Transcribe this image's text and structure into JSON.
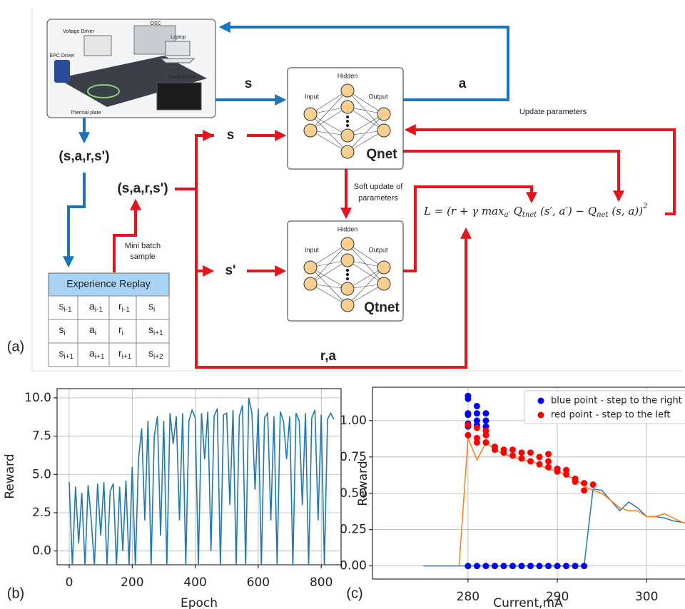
{
  "diagram": {
    "panel_labels": [
      "(a)",
      "(b)",
      "(c)"
    ],
    "photo_labels": [
      "OSC",
      "Laptop",
      "Voltage Driver",
      "EPC Driver",
      "Diode Driver",
      "Thermal plate"
    ],
    "state_s": "s",
    "action_a": "a",
    "update_parameters": "Update parameters",
    "transition_top": "(s,a,r,s')",
    "transition_sample": "(s,a,r,s')",
    "mini_batch": [
      "Mini batch",
      "sample"
    ],
    "input_s": "s",
    "input_s_next": "s'",
    "reward_action": "r,a",
    "soft_update": [
      "Soft update of",
      "parameters"
    ],
    "qnet": {
      "title": "Qnet",
      "hidden": "Hidden",
      "input": "Input",
      "output": "Output"
    },
    "qtnet": {
      "title": "Qtnet",
      "hidden": "Hidden",
      "input": "Input",
      "output": "Output"
    },
    "loss": [
      "L = ",
      "(r + γ max",
      "a′",
      " Q",
      "tnet",
      " (s′, a′) − Q",
      "net",
      " (s, a))",
      "2"
    ],
    "table": {
      "title": "Experience Replay",
      "rows": [
        [
          [
            "s",
            "i-1"
          ],
          [
            "a",
            "i-1"
          ],
          [
            "r",
            "i-1"
          ],
          [
            "s",
            "i"
          ]
        ],
        [
          [
            "s",
            "i"
          ],
          [
            "a",
            "i"
          ],
          [
            "r",
            "i"
          ],
          [
            "s",
            "i+1"
          ]
        ],
        [
          [
            "s",
            "i+1"
          ],
          [
            "a",
            "i+1"
          ],
          [
            "r",
            "i+1"
          ],
          [
            "s",
            "i+2"
          ]
        ]
      ]
    }
  },
  "chart_data": [
    {
      "type": "line",
      "x_label": "Epoch",
      "y_label": "Reward",
      "grid": true,
      "xlim": [
        -38.5,
        863
      ],
      "ylim": [
        -0.9,
        10.6
      ],
      "xticks": [
        0,
        200,
        400,
        600,
        800
      ],
      "yticks": [
        {
          "value": 0,
          "label": "0.0"
        },
        {
          "value": 2.5,
          "label": "2.5"
        },
        {
          "value": 5,
          "label": "5.0"
        },
        {
          "value": 7.5,
          "label": "7.5"
        },
        {
          "value": 10,
          "label": "10.0"
        }
      ],
      "series": [
        {
          "color": "#1f77b4",
          "x": [
            0,
            10,
            20,
            30,
            40,
            50,
            60,
            70,
            80,
            90,
            100,
            110,
            120,
            130,
            140,
            150,
            160,
            170,
            180,
            190,
            200,
            210,
            220,
            230,
            240,
            250,
            260,
            270,
            280,
            290,
            300,
            310,
            320,
            330,
            340,
            350,
            360,
            370,
            380,
            390,
            400,
            410,
            420,
            430,
            440,
            450,
            460,
            470,
            480,
            490,
            500,
            510,
            520,
            530,
            540,
            550,
            560,
            570,
            580,
            590,
            600,
            610,
            620,
            630,
            640,
            650,
            660,
            670,
            680,
            690,
            700,
            710,
            720,
            730,
            740,
            750,
            760,
            770,
            780,
            790,
            800,
            810,
            820,
            830,
            840
          ],
          "values": [
            4.5,
            -1,
            4.2,
            0.5,
            3.8,
            -1,
            4.3,
            2,
            -1,
            4.4,
            1,
            4.5,
            -1,
            3.9,
            4.4,
            -1,
            4.2,
            0,
            4.6,
            -1,
            5.5,
            -1,
            6,
            8,
            2,
            8.5,
            -1,
            7.5,
            8.8,
            1,
            8.5,
            -1,
            9,
            7,
            8.8,
            2,
            9,
            -1,
            8.5,
            9.2,
            8.7,
            -1,
            9,
            6,
            9.1,
            0,
            8.8,
            9.3,
            -1,
            8.9,
            9,
            3,
            9.2,
            -1,
            8.8,
            9.5,
            -1,
            10,
            9,
            4,
            9.3,
            -1,
            8.7,
            9,
            2,
            8.8,
            -1,
            9.1,
            8.5,
            6,
            8.8,
            -1,
            9,
            8.5,
            3,
            9,
            -1,
            8.7,
            9.2,
            2,
            8.9,
            -1,
            8.6,
            9,
            8.6
          ]
        }
      ]
    },
    {
      "type": "scatter",
      "x_label": "Current,mA",
      "y_label": "Reward",
      "grid": true,
      "legend": "upper right",
      "xlim": [
        269.3,
        304.3
      ],
      "ylim": [
        -0.09,
        1.23
      ],
      "xticks": [
        280,
        290,
        300
      ],
      "yticks": [
        {
          "value": 0,
          "label": "0.00"
        },
        {
          "value": 0.25,
          "label": "0.25"
        },
        {
          "value": 0.5,
          "label": "0.50"
        },
        {
          "value": 0.75,
          "label": "0.75"
        },
        {
          "value": 1,
          "label": "1.00"
        }
      ],
      "series": [
        {
          "name": "blue point - step to the right",
          "color": "#0000ff",
          "x": [
            280,
            280,
            280,
            280,
            280,
            280,
            281,
            281,
            281,
            281,
            282,
            282,
            282,
            280,
            281,
            282,
            283,
            284,
            285,
            286,
            287,
            288,
            289,
            290,
            291,
            292,
            293
          ],
          "values": [
            1.17,
            1.15,
            1.05,
            1.04,
            0.98,
            0.96,
            1.1,
            1.05,
            1.0,
            0.97,
            1.05,
            1.0,
            0.96,
            0,
            0,
            0,
            0,
            0,
            0,
            0,
            0,
            0,
            0,
            0,
            0,
            0,
            0
          ]
        },
        {
          "name": "red point - step to the left",
          "color": "#ff0000",
          "x": [
            280,
            280,
            281,
            281,
            281,
            282,
            282,
            282,
            283,
            283,
            284,
            284,
            285,
            285,
            286,
            286,
            287,
            287,
            288,
            288,
            289,
            289,
            289,
            290,
            290,
            291,
            291,
            292,
            292,
            293,
            293,
            294
          ],
          "values": [
            0.9,
            0.97,
            0.88,
            0.95,
            0.85,
            0.93,
            0.9,
            0.85,
            0.82,
            0.8,
            0.8,
            0.78,
            0.8,
            0.76,
            0.78,
            0.74,
            0.78,
            0.72,
            0.75,
            0.7,
            0.72,
            0.68,
            0.77,
            0.67,
            0.65,
            0.66,
            0.63,
            0.6,
            0.58,
            0.57,
            0.52,
            0.56
          ]
        }
      ],
      "lines": [
        {
          "color": "#1f77b4",
          "x": [
            275,
            279,
            280,
            293,
            294,
            295,
            296,
            297,
            298,
            299,
            300,
            301,
            302,
            303,
            304,
            305,
            306
          ],
          "values": [
            0,
            0,
            0,
            0,
            0.53,
            0.52,
            0.45,
            0.38,
            0.44,
            0.4,
            0.34,
            0.34,
            0.33,
            0.31,
            0.3,
            0.29,
            0.26
          ]
        },
        {
          "color": "#ff7f0e",
          "x": [
            279,
            280,
            281,
            282,
            283,
            284,
            285,
            286,
            287,
            288,
            289,
            290,
            291,
            292,
            293,
            294,
            295,
            296,
            297,
            298,
            299,
            300,
            301,
            302,
            303,
            304,
            305
          ],
          "values": [
            0,
            0.88,
            0.73,
            0.85,
            0.8,
            0.77,
            0.75,
            0.73,
            0.72,
            0.7,
            0.66,
            0.66,
            0.62,
            0.6,
            0.55,
            0.52,
            0.5,
            0.45,
            0.4,
            0.38,
            0.38,
            0.34,
            0.34,
            0.36,
            0.33,
            0.3,
            0.29
          ]
        }
      ]
    }
  ]
}
